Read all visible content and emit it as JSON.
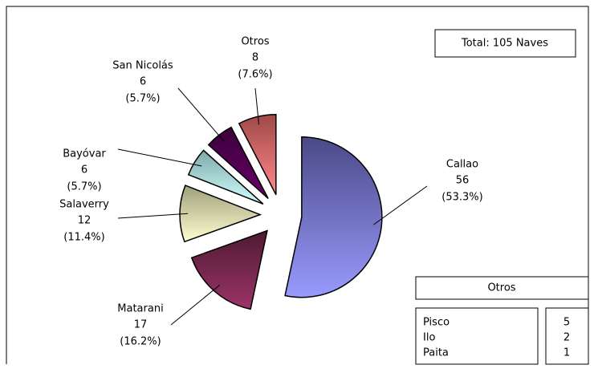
{
  "chart_data": {
    "type": "pie",
    "categories": [
      "Callao",
      "Matarani",
      "Salaverry",
      "Bayóvar",
      "San Nicolás",
      "Otros"
    ],
    "values": [
      56,
      17,
      12,
      6,
      6,
      8
    ],
    "percent_labels": [
      "(53.3%)",
      "(16.2%)",
      "(11.4%)",
      "(5.7%)",
      "(5.7%)",
      "(7.6%)"
    ],
    "colors": [
      [
        "#9a9aff",
        "#4a4a86"
      ],
      [
        "#9c3468",
        "#4e1a34"
      ],
      [
        "#ffffd0",
        "#9e9e7c"
      ],
      [
        "#d0ffff",
        "#7fa8a8"
      ],
      [
        "#6a006a",
        "#3a003a"
      ],
      [
        "#ff8a8a",
        "#a04848"
      ]
    ],
    "annotation": "Total: 105 Naves",
    "table": {
      "title": "Otros",
      "rows": [
        [
          "Pisco",
          5
        ],
        [
          "Ilo",
          2
        ],
        [
          "Paita",
          1
        ]
      ]
    }
  }
}
